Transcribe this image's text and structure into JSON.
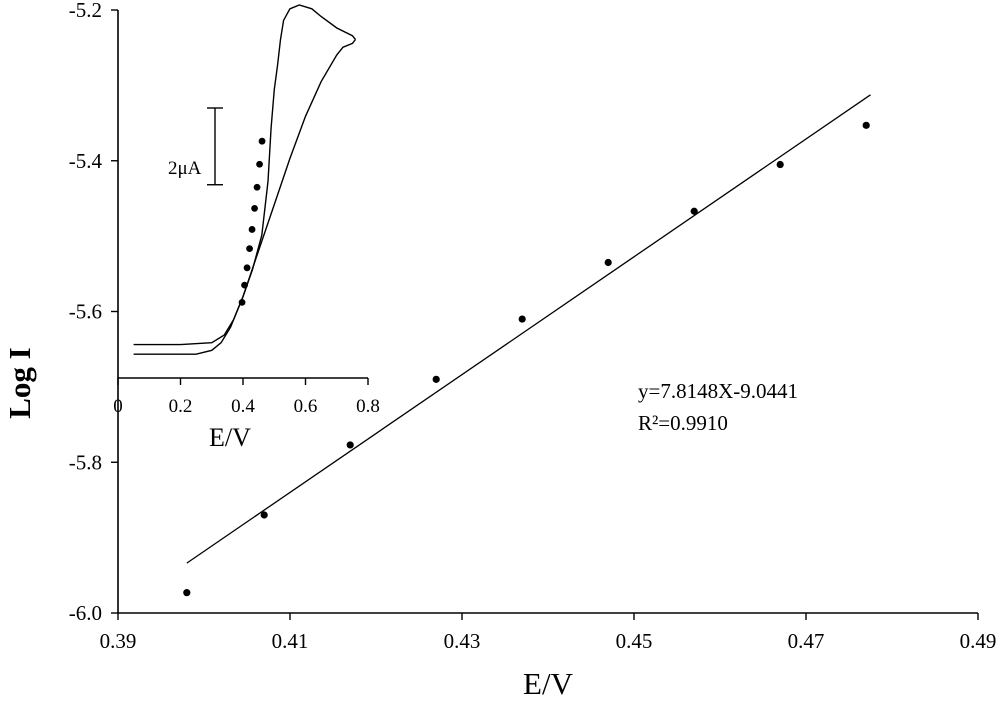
{
  "chart_data": [
    {
      "type": "scatter",
      "xlabel": "E/V",
      "ylabel": "Log I",
      "xlim": [
        0.39,
        0.49
      ],
      "ylim": [
        -6.0,
        -5.2
      ],
      "xticks": [
        0.39,
        0.41,
        0.43,
        0.45,
        0.47,
        0.49
      ],
      "xtick_labels": [
        "0.39",
        "0.41",
        "0.43",
        "0.45",
        "0.47",
        "0.49"
      ],
      "yticks": [
        -6.0,
        -5.8,
        -5.6,
        -5.4,
        -5.2
      ],
      "ytick_labels": [
        "-6.0",
        "-5.8",
        "-5.6",
        "-5.4",
        "-5.2"
      ],
      "grid": false,
      "series": [
        {
          "x": [
            0.398,
            0.407,
            0.417,
            0.427,
            0.437,
            0.447,
            0.457,
            0.467,
            0.477
          ],
          "y": [
            -5.973,
            -5.87,
            -5.777,
            -5.69,
            -5.61,
            -5.535,
            -5.467,
            -5.405,
            -5.353
          ]
        }
      ],
      "fit": {
        "slope": 7.8148,
        "intercept": -9.0441,
        "x_range": [
          0.398,
          0.4775
        ]
      },
      "annotations": [
        "y=7.8148X-9.0441",
        "R²=0.9910"
      ]
    },
    {
      "type": "line",
      "xlabel": "E/V",
      "xlim": [
        0,
        0.8
      ],
      "xticks": [
        0,
        0.2,
        0.4,
        0.6,
        0.8
      ],
      "xtick_labels": [
        "0",
        "0.2",
        "0.4",
        "0.6",
        "0.8"
      ],
      "scale_bar_label": "2μA",
      "scale_bar_uA": 2,
      "current_range_uA": [
        0,
        9.2
      ],
      "curve": {
        "forward": {
          "x": [
            0.05,
            0.15,
            0.25,
            0.3,
            0.33,
            0.36,
            0.4,
            0.45,
            0.5,
            0.55,
            0.6,
            0.65,
            0.7,
            0.72,
            0.75,
            0.76
          ],
          "y": [
            0.1,
            0.1,
            0.1,
            0.2,
            0.4,
            0.8,
            1.6,
            2.8,
            4.0,
            5.2,
            6.3,
            7.2,
            7.9,
            8.1,
            8.2,
            8.3
          ]
        },
        "reverse": {
          "x": [
            0.76,
            0.75,
            0.7,
            0.65,
            0.62,
            0.58,
            0.55,
            0.53,
            0.52,
            0.51,
            0.5,
            0.49,
            0.48,
            0.46,
            0.43,
            0.4,
            0.37,
            0.34,
            0.3,
            0.2,
            0.1,
            0.05
          ],
          "y": [
            8.3,
            8.4,
            8.6,
            8.9,
            9.1,
            9.2,
            9.1,
            8.8,
            8.3,
            7.6,
            7.0,
            6.0,
            4.6,
            3.2,
            2.3,
            1.6,
            1.0,
            0.6,
            0.4,
            0.35,
            0.35,
            0.35
          ]
        }
      },
      "points": {
        "x": [
          0.397,
          0.405,
          0.413,
          0.421,
          0.429,
          0.437,
          0.445,
          0.453,
          0.461
        ],
        "y": [
          1.45,
          1.9,
          2.35,
          2.85,
          3.35,
          3.9,
          4.45,
          5.05,
          5.65
        ]
      }
    }
  ]
}
